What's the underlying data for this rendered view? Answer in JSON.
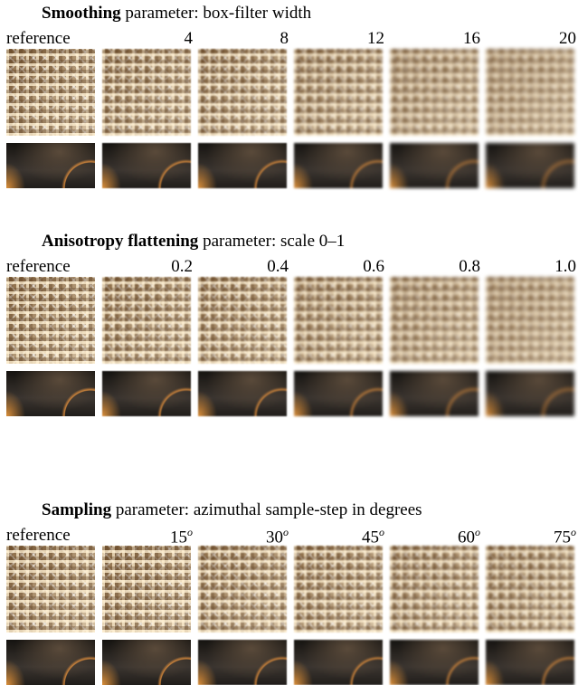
{
  "sections": [
    {
      "title_bold": "Smoothing",
      "title_rest": "parameter: box-filter width",
      "labels": [
        {
          "text": "reference"
        },
        {
          "text": "4"
        },
        {
          "text": "8"
        },
        {
          "text": "12"
        },
        {
          "text": "16"
        },
        {
          "text": "20"
        }
      ]
    },
    {
      "title_bold": "Anisotropy flattening",
      "title_rest": "parameter: scale 0–1",
      "labels": [
        {
          "text": "reference"
        },
        {
          "text": "0.2"
        },
        {
          "text": "0.4"
        },
        {
          "text": "0.6"
        },
        {
          "text": "0.8"
        },
        {
          "text": "1.0"
        }
      ]
    },
    {
      "title_bold": "Sampling",
      "title_rest": "parameter: azimuthal sample-step in degrees",
      "labels": [
        {
          "text": "reference"
        },
        {
          "text": "15",
          "sup": "o"
        },
        {
          "text": "30",
          "sup": "o"
        },
        {
          "text": "45",
          "sup": "o"
        },
        {
          "text": "60",
          "sup": "o"
        },
        {
          "text": "75",
          "sup": "o"
        }
      ]
    }
  ]
}
